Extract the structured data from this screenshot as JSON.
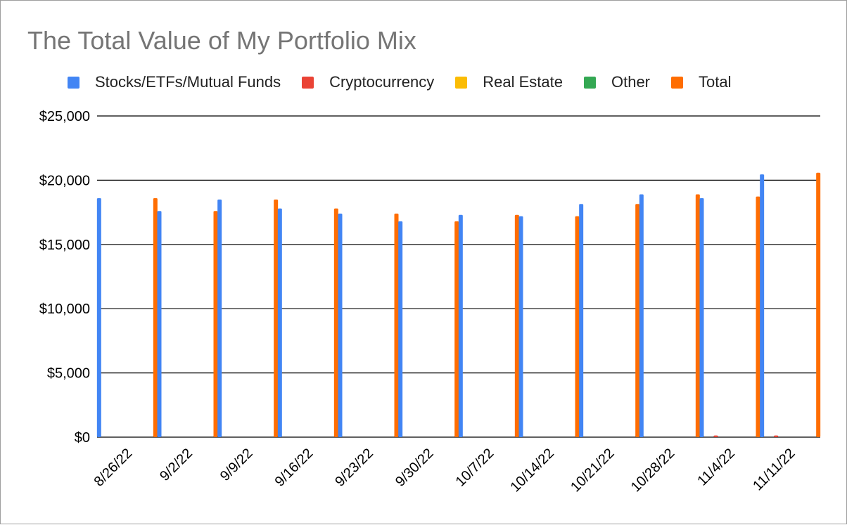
{
  "chart_data": {
    "type": "bar",
    "title": "The Total Value of My Portfolio Mix",
    "xlabel": "",
    "ylabel": "",
    "categories": [
      "8/26/22",
      "9/2/22",
      "9/9/22",
      "9/16/22",
      "9/23/22",
      "9/30/22",
      "10/7/22",
      "10/14/22",
      "10/21/22",
      "10/28/22",
      "11/4/22",
      "11/11/22"
    ],
    "series": [
      {
        "name": "Stocks/ETFs/Mutual Funds",
        "color": "#4285f4",
        "values": [
          18600,
          17600,
          18500,
          17800,
          17400,
          16800,
          17300,
          17200,
          18150,
          18900,
          18600,
          20450
        ]
      },
      {
        "name": "Cryptocurrency",
        "color": "#ea4335",
        "values": [
          0,
          0,
          0,
          0,
          0,
          0,
          0,
          0,
          0,
          0,
          130,
          130
        ]
      },
      {
        "name": "Real Estate",
        "color": "#fbbc04",
        "values": [
          0,
          0,
          0,
          0,
          0,
          0,
          0,
          0,
          0,
          0,
          0,
          0
        ]
      },
      {
        "name": "Other",
        "color": "#34a853",
        "values": [
          0,
          0,
          0,
          0,
          0,
          0,
          0,
          0,
          0,
          0,
          0,
          0
        ]
      },
      {
        "name": "Total",
        "color": "#ff6d01",
        "values": [
          18600,
          17600,
          18500,
          17800,
          17400,
          16800,
          17300,
          17200,
          18150,
          18900,
          18730,
          20580
        ]
      }
    ],
    "ylim": [
      0,
      25000
    ],
    "yticks": [
      0,
      5000,
      10000,
      15000,
      20000,
      25000
    ],
    "ytick_labels": [
      "$0",
      "$5,000",
      "$10,000",
      "$15,000",
      "$20,000",
      "$25,000"
    ],
    "grid": true,
    "legend_position": "top"
  }
}
